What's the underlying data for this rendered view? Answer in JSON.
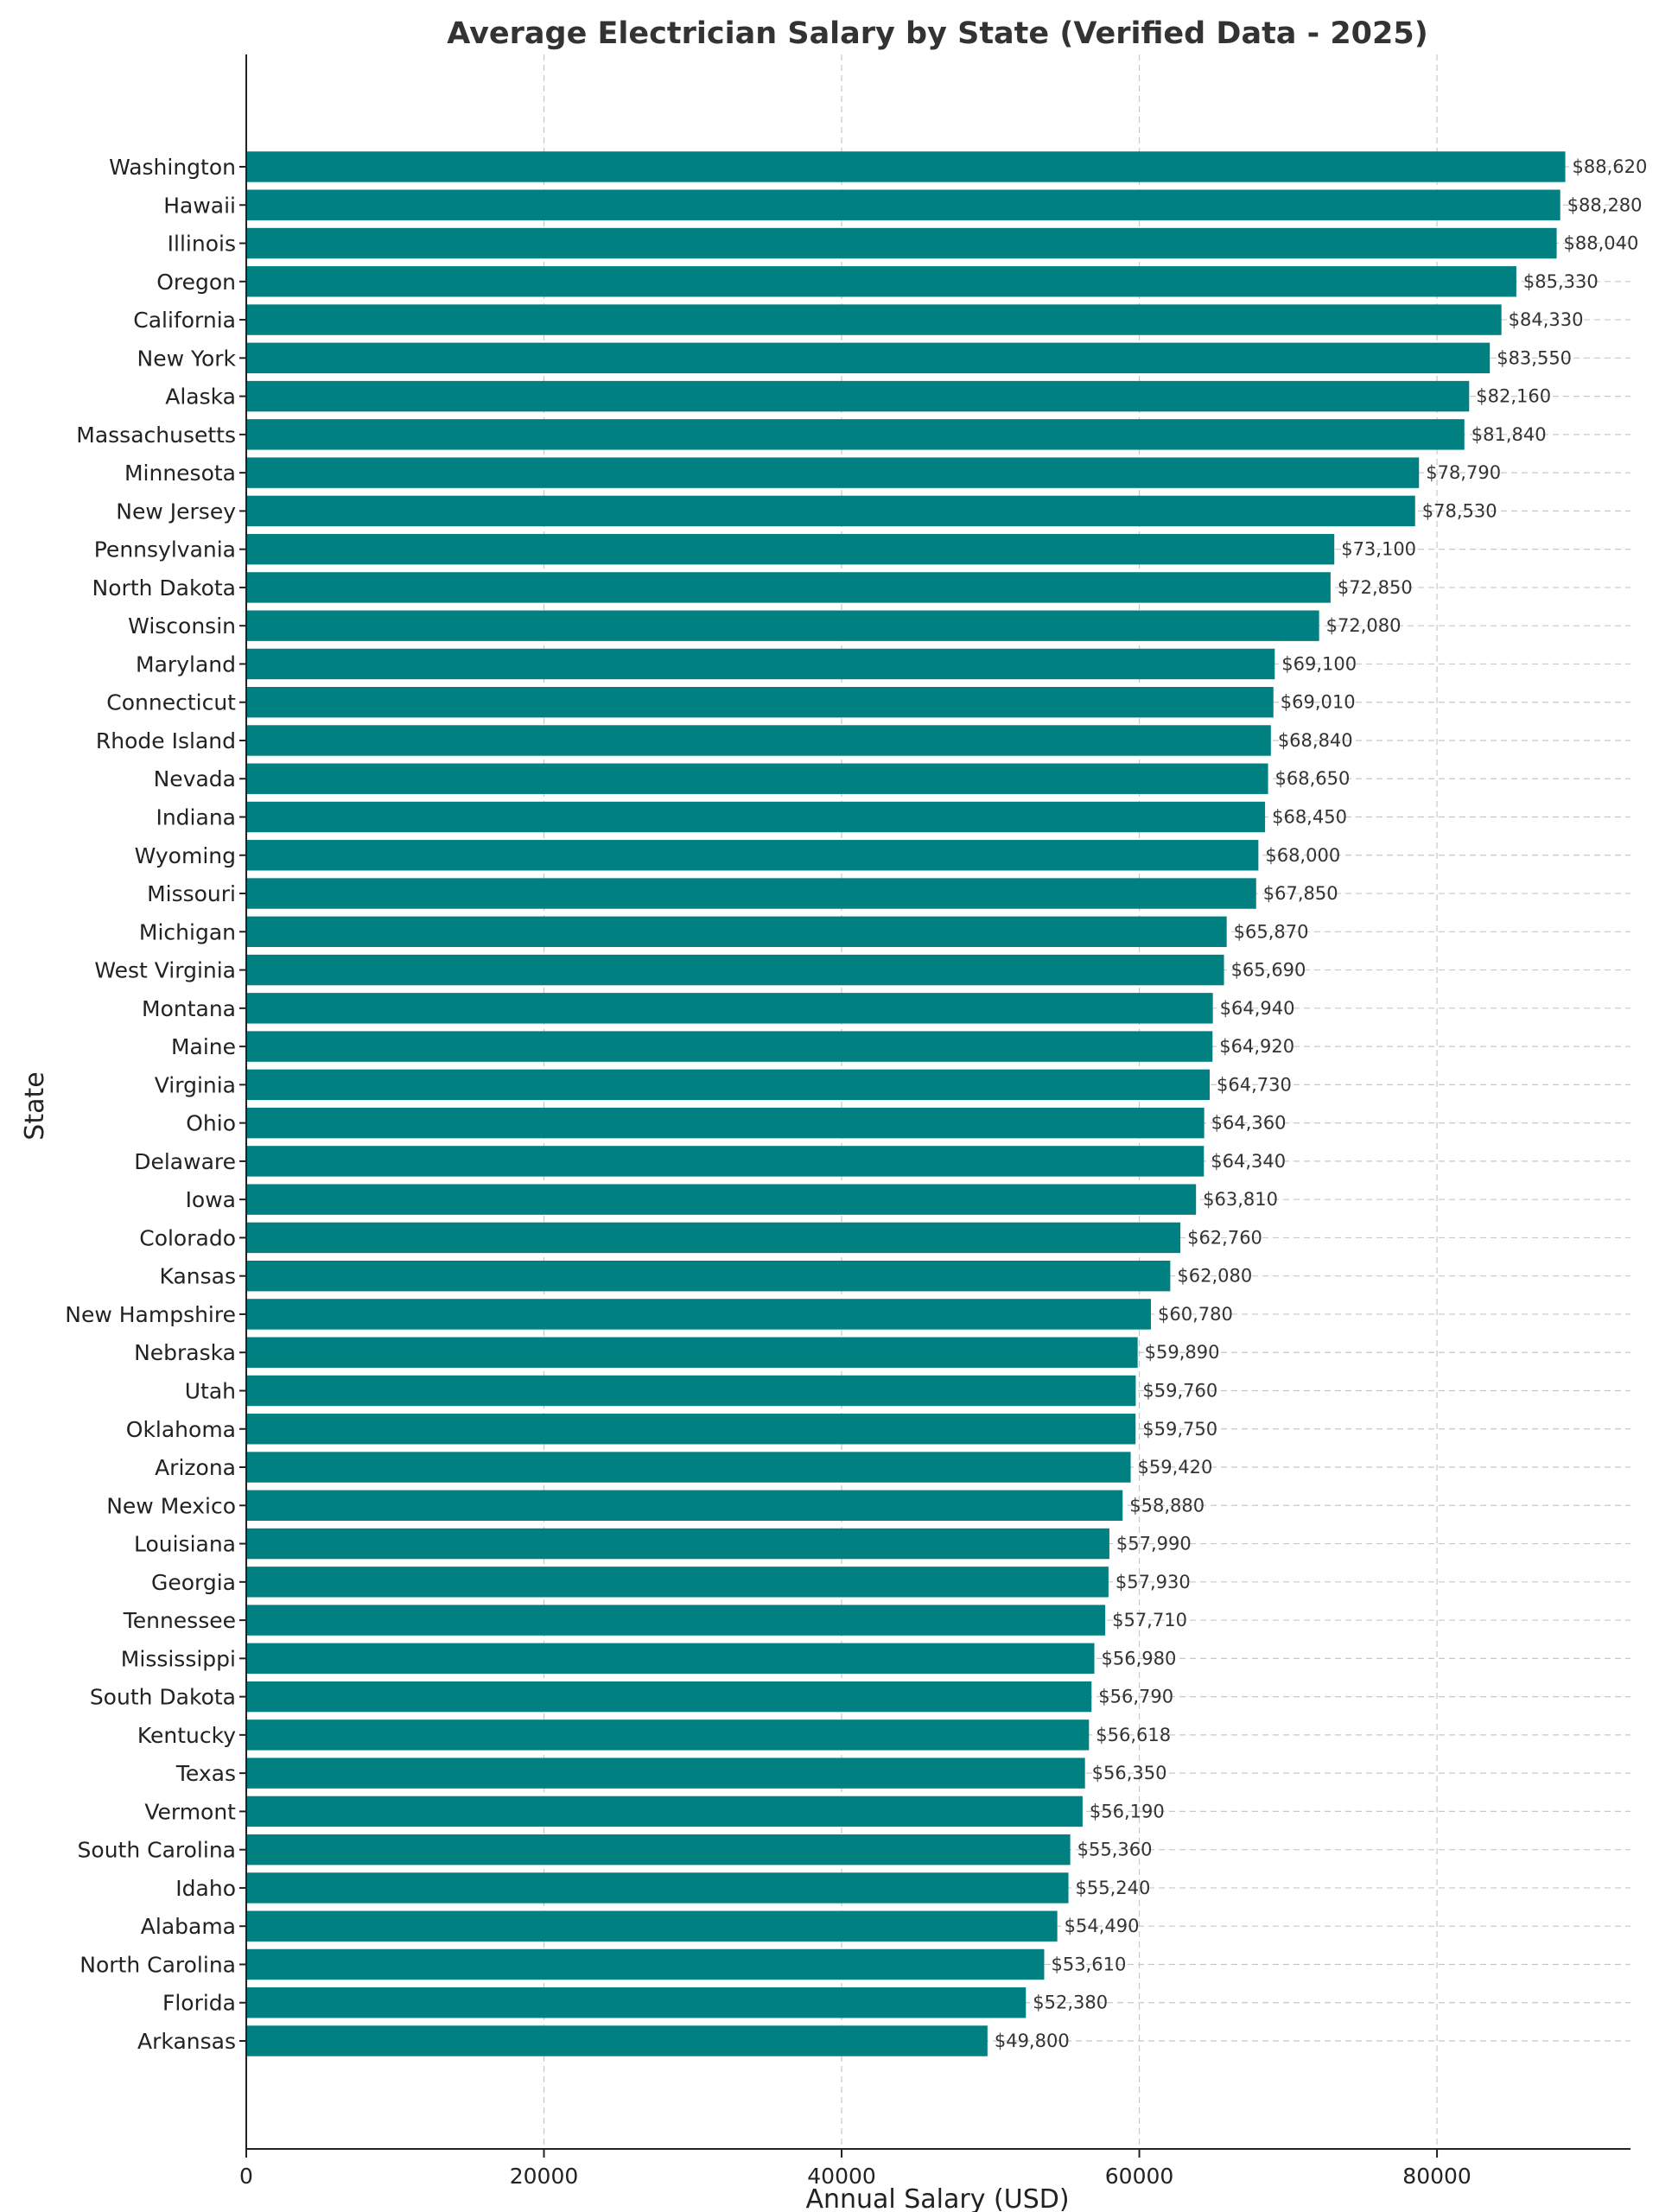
{
  "chart_data": {
    "type": "bar",
    "orientation": "horizontal",
    "title": "Average Electrician Salary by State (Verified Data - 2025)",
    "xlabel": "Annual Salary (USD)",
    "ylabel": "State",
    "xlim": [
      0,
      93000
    ],
    "xticks": [
      0,
      20000,
      40000,
      60000,
      80000
    ],
    "grid": true,
    "bar_color": "#008080",
    "categories": [
      "Washington",
      "Hawaii",
      "Illinois",
      "Oregon",
      "California",
      "New York",
      "Alaska",
      "Massachusetts",
      "Minnesota",
      "New Jersey",
      "Pennsylvania",
      "North Dakota",
      "Wisconsin",
      "Maryland",
      "Connecticut",
      "Rhode Island",
      "Nevada",
      "Indiana",
      "Wyoming",
      "Missouri",
      "Michigan",
      "West Virginia",
      "Montana",
      "Maine",
      "Virginia",
      "Ohio",
      "Delaware",
      "Iowa",
      "Colorado",
      "Kansas",
      "New Hampshire",
      "Nebraska",
      "Utah",
      "Oklahoma",
      "Arizona",
      "New Mexico",
      "Louisiana",
      "Georgia",
      "Tennessee",
      "Mississippi",
      "South Dakota",
      "Kentucky",
      "Texas",
      "Vermont",
      "South Carolina",
      "Idaho",
      "Alabama",
      "North Carolina",
      "Florida",
      "Arkansas"
    ],
    "values": [
      88620,
      88280,
      88040,
      85330,
      84330,
      83550,
      82160,
      81840,
      78790,
      78530,
      73100,
      72850,
      72080,
      69100,
      69010,
      68840,
      68650,
      68450,
      68000,
      67850,
      65870,
      65690,
      64940,
      64920,
      64730,
      64360,
      64340,
      63810,
      62760,
      62080,
      60780,
      59890,
      59760,
      59750,
      59420,
      58880,
      57990,
      57930,
      57710,
      56980,
      56790,
      56618,
      56350,
      56190,
      55360,
      55240,
      54490,
      53610,
      52380,
      49800
    ],
    "data_labels": [
      "$88,620",
      "$88,280",
      "$88,040",
      "$85,330",
      "$84,330",
      "$83,550",
      "$82,160",
      "$81,840",
      "$78,790",
      "$78,530",
      "$73,100",
      "$72,850",
      "$72,080",
      "$69,100",
      "$69,010",
      "$68,840",
      "$68,650",
      "$68,450",
      "$68,000",
      "$67,850",
      "$65,870",
      "$65,690",
      "$64,940",
      "$64,920",
      "$64,730",
      "$64,360",
      "$64,340",
      "$63,810",
      "$62,760",
      "$62,080",
      "$60,780",
      "$59,890",
      "$59,760",
      "$59,750",
      "$59,420",
      "$58,880",
      "$57,990",
      "$57,930",
      "$57,710",
      "$56,980",
      "$56,790",
      "$56,618",
      "$56,350",
      "$56,190",
      "$55,360",
      "$55,240",
      "$54,490",
      "$53,610",
      "$52,380",
      "$49,800"
    ]
  }
}
